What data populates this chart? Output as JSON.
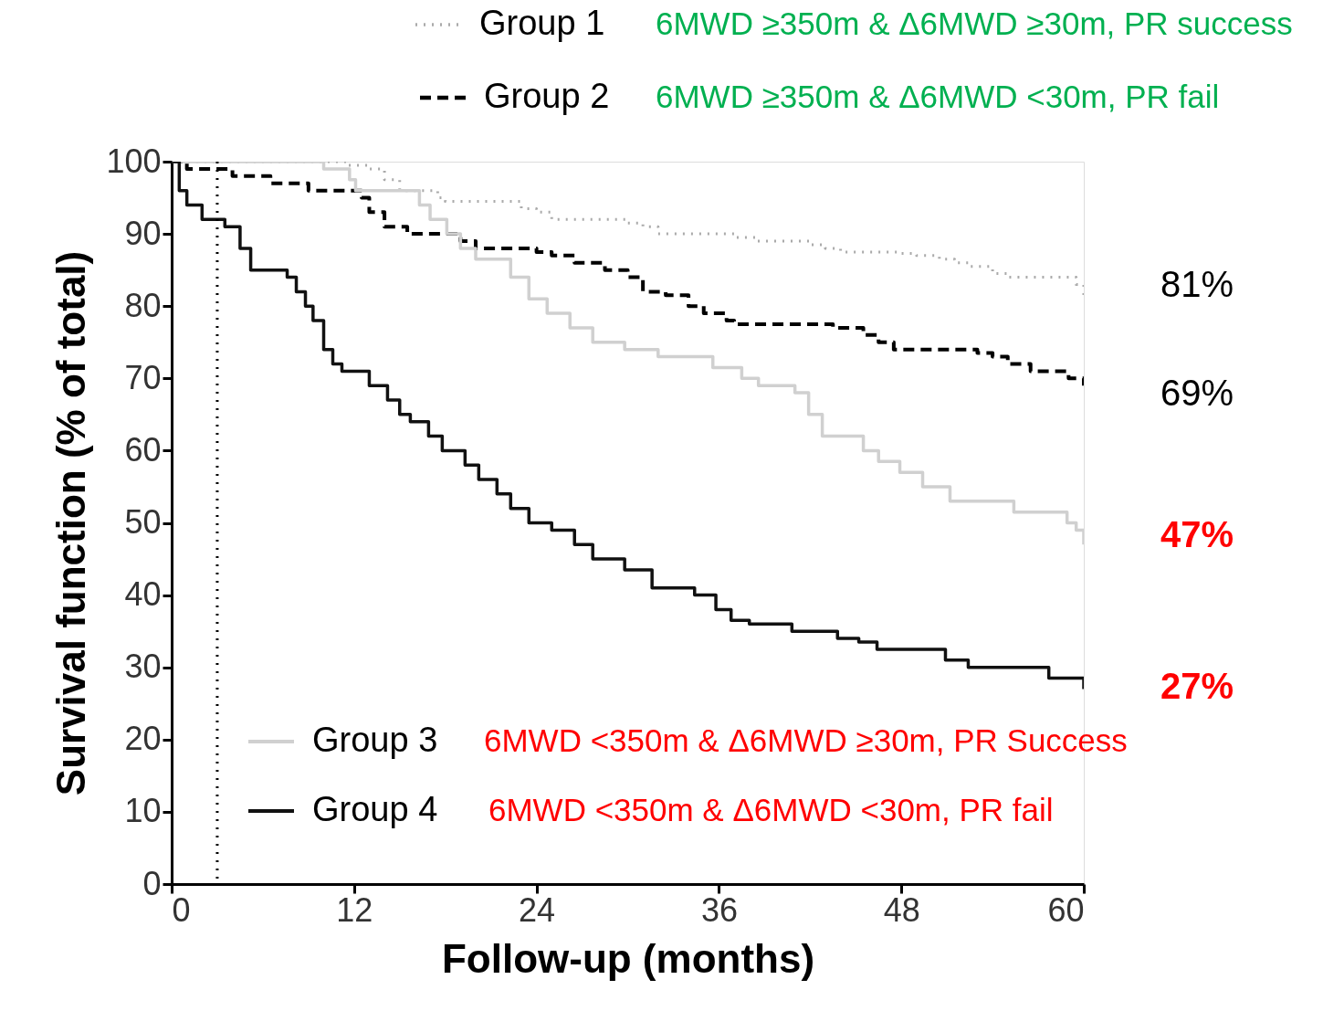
{
  "chart_data": {
    "type": "step",
    "xlabel": "Follow-up (months)",
    "ylabel": "Survival function (% of total)",
    "xlim": [
      0,
      60
    ],
    "xticks": [
      0,
      12,
      24,
      36,
      48,
      60
    ],
    "ylim": [
      0,
      100
    ],
    "yticks": [
      0,
      10,
      20,
      30,
      40,
      50,
      60,
      70,
      80,
      90,
      100
    ],
    "grid": false,
    "legend": "top",
    "series": [
      {
        "name": "Group 1",
        "color": "#aaaaaa",
        "line_style": "dotted",
        "x": [
          0,
          9,
          11.5,
          13,
          14,
          15,
          17.5,
          18,
          23,
          24,
          25,
          30,
          31,
          32,
          37,
          38.5,
          42,
          43,
          44,
          48,
          49,
          50.5,
          51.5,
          52.5,
          54,
          55,
          59.5,
          60
        ],
        "values": [
          100,
          100,
          99.5,
          99,
          97.5,
          96,
          95,
          94.5,
          93.5,
          93,
          92,
          91.5,
          91,
          90,
          89.5,
          89,
          88.5,
          88,
          87.5,
          87.3,
          87,
          86.5,
          86,
          85.5,
          84.5,
          84,
          83,
          81
        ]
      },
      {
        "name": "Group 2",
        "color": "#000000",
        "line_style": "dashed",
        "x": [
          0,
          1,
          4,
          6.5,
          9,
          12.5,
          13,
          14,
          15.5,
          19,
          20,
          24,
          25,
          26.5,
          28.5,
          30,
          31,
          32.5,
          34,
          35,
          36.5,
          37,
          43.5,
          45.5,
          46.5,
          47.5,
          53,
          54,
          55,
          56.5,
          59,
          60
        ],
        "values": [
          100,
          99,
          98,
          97,
          96,
          95,
          93,
          91,
          90,
          89,
          88,
          87.5,
          87,
          86,
          85,
          84,
          82,
          81.5,
          80,
          79,
          78,
          77.5,
          77,
          76,
          75,
          74,
          73.5,
          73,
          72,
          71,
          70,
          69
        ]
      },
      {
        "name": "Group 3",
        "color": "#d0d0d0",
        "line_style": "solid",
        "x": [
          0,
          10,
          11.7,
          12.1,
          16.3,
          17,
          18.1,
          19,
          20,
          22.3,
          23.5,
          24.7,
          26.2,
          27.7,
          29.8,
          32,
          35.6,
          37.5,
          38.6,
          41,
          41.9,
          42.8,
          45.5,
          46.5,
          47.9,
          49.4,
          51.2,
          55.4,
          58.9,
          59.5,
          60
        ],
        "values": [
          100,
          99,
          97.5,
          96,
          94,
          92,
          90,
          88,
          86.5,
          84,
          81,
          79,
          77,
          75,
          74,
          73,
          71.5,
          70,
          69,
          68,
          65,
          62,
          60,
          58.5,
          57,
          55,
          53,
          51.5,
          50,
          49,
          47
        ]
      },
      {
        "name": "Group 4",
        "color": "#111111",
        "line_style": "solid",
        "x": [
          0,
          0.5,
          1,
          2,
          3.5,
          4.5,
          5.2,
          7.6,
          8.2,
          8.8,
          9.3,
          10,
          10.6,
          11.2,
          13,
          14.2,
          15,
          15.7,
          16.9,
          17.8,
          19.3,
          20.2,
          21.4,
          22.3,
          23.5,
          25,
          26.5,
          27.7,
          29.8,
          31.6,
          34.4,
          35.8,
          36.8,
          38,
          40.8,
          43.8,
          45.2,
          46.4,
          50.9,
          52.4,
          57.7,
          60
        ],
        "values": [
          100,
          96,
          94,
          92,
          91,
          88,
          85,
          84,
          82,
          80,
          78,
          74,
          72,
          71,
          69,
          67,
          65,
          64,
          62,
          60,
          58,
          56,
          54,
          52,
          50,
          49,
          47,
          45,
          43.5,
          41,
          40,
          38,
          36.5,
          36,
          35,
          34,
          33.5,
          32.5,
          31,
          30,
          28.5,
          27
        ]
      }
    ],
    "ref_lines": [
      {
        "axis": "x",
        "value": 3,
        "color": "#000000",
        "line_style": "dotted"
      }
    ],
    "annotations": [
      "6MWD ≥350m & Δ6MWD ≥30m, PR success",
      "6MWD ≥350m & Δ6MWD <30m, PR fail",
      "6MWD <350m & Δ6MWD ≥30m, PR Success",
      "6MWD <350m & Δ6MWD <30m, PR fail",
      "81%",
      "69%",
      "47%",
      "27%"
    ]
  }
}
